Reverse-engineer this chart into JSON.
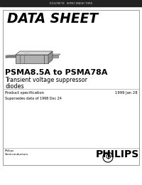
{
  "bg_color": "#ffffff",
  "top_bar_color": "#222222",
  "top_bar_text": "DISCRETE SEMICONDUCTORS",
  "top_bar_text_color": "#cccccc",
  "card_bg": "#ffffff",
  "card_border": "#888888",
  "title_line1": "DATA SHEET",
  "product_line1": "PSMA8.5A to PSMA78A",
  "product_line2": "Transient voltage suppressor",
  "product_line3": "diodes",
  "spec_label": "Product specification",
  "spec_date": "1999 Jan 28",
  "supersedes": "Supersedes data of 1998 Dec 24",
  "philips_text": "PHILIPS",
  "philips_semi": "Philips\nSemiconductors",
  "fig_w": 2.0,
  "fig_h": 2.6,
  "dpi": 100
}
